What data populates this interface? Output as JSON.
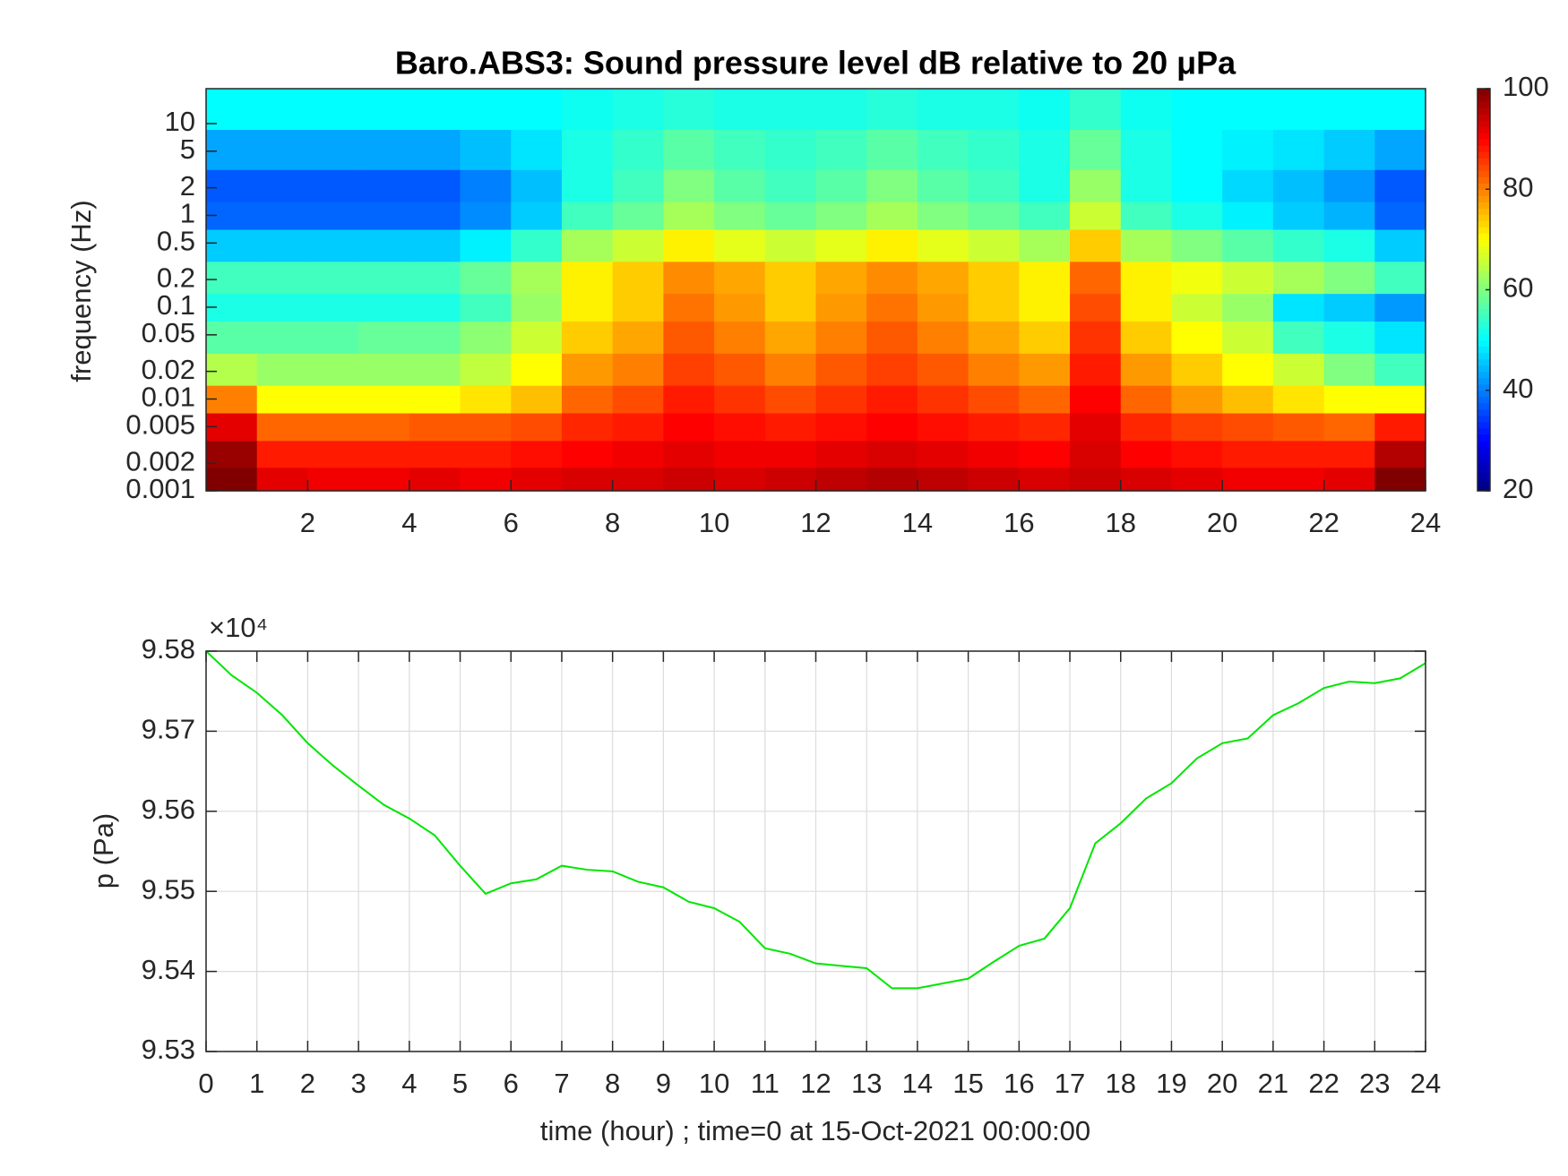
{
  "chart_data": [
    {
      "type": "heatmap",
      "title": "Baro.ABS3: Sound pressure level dB relative to 20 μPa",
      "ylabel": "frequency (Hz)",
      "x": [
        0.5,
        1.5,
        2.5,
        3.5,
        4.5,
        5.5,
        6.5,
        7.5,
        8.5,
        9.5,
        10.5,
        11.5,
        12.5,
        13.5,
        14.5,
        15.5,
        16.5,
        17.5,
        18.5,
        19.5,
        20.5,
        21.5,
        22.5,
        23.5
      ],
      "y": [
        0.0013,
        0.0025,
        0.005,
        0.01,
        0.02,
        0.05,
        0.1,
        0.2,
        0.5,
        1,
        2,
        5,
        15
      ],
      "z": [
        [
          100,
          92,
          91,
          91,
          92,
          91,
          92,
          93,
          93,
          94,
          93,
          94,
          95,
          96,
          95,
          94,
          93,
          94,
          93,
          92,
          91,
          91,
          92,
          100
        ],
        [
          98,
          88,
          88,
          88,
          88,
          88,
          89,
          90,
          91,
          92,
          91,
          91,
          92,
          93,
          92,
          91,
          90,
          93,
          90,
          89,
          88,
          88,
          88,
          96
        ],
        [
          92,
          82,
          82,
          82,
          83,
          83,
          84,
          87,
          88,
          90,
          89,
          88,
          89,
          90,
          89,
          88,
          87,
          92,
          87,
          85,
          84,
          83,
          82,
          88
        ],
        [
          80,
          70,
          70,
          70,
          70,
          72,
          75,
          82,
          84,
          88,
          86,
          84,
          86,
          88,
          86,
          84,
          82,
          90,
          82,
          78,
          75,
          72,
          70,
          70
        ],
        [
          64,
          62,
          62,
          62,
          62,
          65,
          70,
          78,
          80,
          85,
          83,
          80,
          83,
          85,
          83,
          80,
          78,
          88,
          78,
          74,
          70,
          66,
          60,
          55
        ],
        [
          57,
          57,
          57,
          58,
          58,
          61,
          66,
          74,
          77,
          83,
          80,
          77,
          80,
          83,
          80,
          77,
          74,
          86,
          74,
          70,
          66,
          55,
          52,
          48
        ],
        [
          52,
          52,
          52,
          52,
          52,
          55,
          62,
          71,
          74,
          81,
          78,
          74,
          78,
          81,
          78,
          74,
          71,
          84,
          71,
          66,
          62,
          48,
          46,
          42
        ],
        [
          55,
          55,
          55,
          55,
          55,
          58,
          63,
          71,
          74,
          79,
          77,
          74,
          77,
          79,
          77,
          74,
          71,
          82,
          71,
          69,
          66,
          63,
          60,
          55
        ],
        [
          46,
          46,
          46,
          46,
          46,
          49,
          54,
          63,
          66,
          71,
          68,
          66,
          68,
          71,
          68,
          66,
          63,
          74,
          63,
          60,
          57,
          54,
          52,
          46
        ],
        [
          38,
          38,
          38,
          38,
          38,
          41,
          46,
          55,
          58,
          63,
          60,
          58,
          60,
          63,
          60,
          58,
          55,
          66,
          55,
          52,
          49,
          46,
          44,
          38
        ],
        [
          37,
          37,
          37,
          37,
          37,
          40,
          45,
          52,
          55,
          60,
          57,
          55,
          57,
          60,
          57,
          55,
          52,
          62,
          52,
          50,
          47,
          45,
          42,
          37
        ],
        [
          43,
          43,
          43,
          43,
          43,
          45,
          48,
          52,
          54,
          57,
          55,
          54,
          55,
          57,
          55,
          54,
          52,
          58,
          52,
          50,
          49,
          48,
          46,
          43
        ],
        [
          50,
          50,
          50,
          50,
          50,
          50,
          50,
          51,
          52,
          53,
          52,
          52,
          52,
          53,
          52,
          52,
          51,
          54,
          51,
          50,
          50,
          50,
          50,
          50
        ]
      ],
      "xlim": [
        0,
        24
      ],
      "xticks": [
        2,
        4,
        6,
        8,
        10,
        12,
        14,
        16,
        18,
        20,
        22,
        24
      ],
      "ylim": [
        0.001,
        24
      ],
      "ylog": true,
      "yticks": [
        0.001,
        0.002,
        0.005,
        0.01,
        0.02,
        0.05,
        0.1,
        0.2,
        0.5,
        1,
        2,
        5,
        10
      ],
      "colormap": "jet",
      "clim": [
        20,
        100
      ],
      "cticks": [
        20,
        40,
        60,
        80,
        100
      ]
    },
    {
      "type": "line",
      "xlabel": "time (hour) ; time=0 at 15-Oct-2021 00:00:00",
      "ylabel": "p (Pa)",
      "y_exponent_label": "×10⁴",
      "x": [
        0,
        0.5,
        1,
        1.5,
        2,
        2.5,
        3,
        3.5,
        4,
        4.5,
        5,
        5.5,
        6,
        6.5,
        7,
        7.5,
        8,
        8.5,
        9,
        9.5,
        10,
        10.5,
        11,
        11.5,
        12,
        12.5,
        13,
        13.5,
        14,
        14.5,
        15,
        15.5,
        16,
        16.5,
        17,
        17.5,
        18,
        18.5,
        19,
        19.5,
        20,
        20.5,
        21,
        21.5,
        22,
        22.5,
        23,
        23.5,
        24
      ],
      "series": [
        {
          "color": "#00e600",
          "values": [
            95800,
            95770,
            95748,
            95720,
            95685,
            95657,
            95632,
            95608,
            95591,
            95570,
            95532,
            95497,
            95510,
            95515,
            95532,
            95527,
            95525,
            95512,
            95505,
            95487,
            95479,
            95462,
            95429,
            95422,
            95410,
            95407,
            95404,
            95379,
            95379,
            95385,
            95391,
            95412,
            95432,
            95441,
            95479,
            95560,
            95585,
            95616,
            95635,
            95666,
            95685,
            95691,
            95720,
            95735,
            95754,
            95762,
            95760,
            95766,
            95785
          ]
        }
      ],
      "xlim": [
        0,
        24
      ],
      "xticks": [
        0,
        1,
        2,
        3,
        4,
        5,
        6,
        7,
        8,
        9,
        10,
        11,
        12,
        13,
        14,
        15,
        16,
        17,
        18,
        19,
        20,
        21,
        22,
        23,
        24
      ],
      "ylim": [
        95300,
        95800
      ],
      "yticks": [
        {
          "value": 95300,
          "label": "9.53"
        },
        {
          "value": 95400,
          "label": "9.54"
        },
        {
          "value": 95500,
          "label": "9.55"
        },
        {
          "value": 95600,
          "label": "9.56"
        },
        {
          "value": 95700,
          "label": "9.57"
        },
        {
          "value": 95800,
          "label": "9.58"
        }
      ],
      "grid": true
    }
  ]
}
